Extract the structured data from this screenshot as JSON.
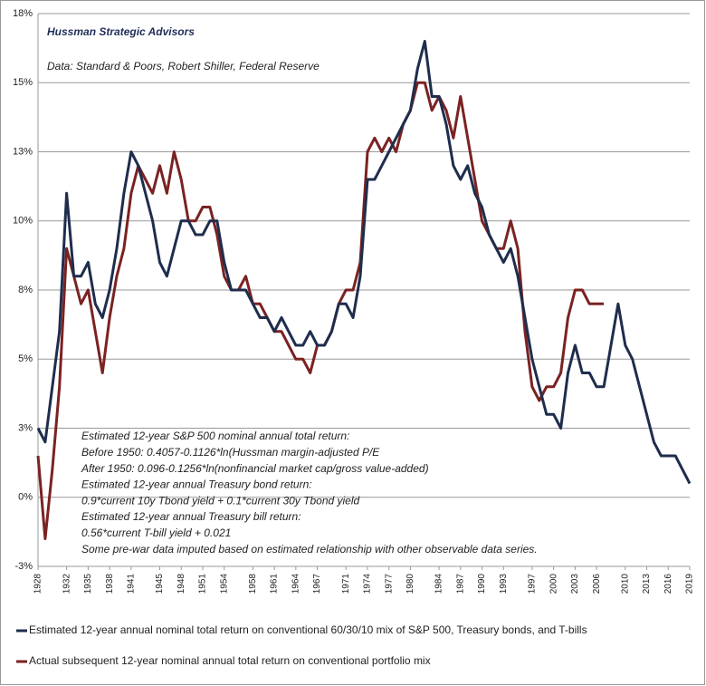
{
  "chart_data": {
    "type": "line",
    "annotations": [
      "Hussman Strategic Advisors",
      "Data: Standard & Poors, Robert Shiller, Federal Reserve"
    ],
    "notes": [
      "Estimated 12-year S&P 500  nominal annual total return:",
      "Before 1950:  0.4057-0.1126*ln(Hussman margin-adjusted P/E",
      "After 1950:  0.096-0.1256*ln(nonfinancial market cap/gross value-added)",
      "Estimated 12-year annual Treasury bond return:",
      "0.9*current 10y Tbond yield + 0.1*current 30y Tbond yield",
      "Estimated 12-year annual Treasury bill return:",
      "0.56*current  T-bill yield + 0.021",
      "Some pre-war data imputed based on estimated relationship with other observable data series."
    ],
    "x": [
      1928,
      1929,
      1930,
      1931,
      1932,
      1933,
      1934,
      1935,
      1936,
      1937,
      1938,
      1939,
      1940,
      1941,
      1942,
      1943,
      1944,
      1945,
      1946,
      1947,
      1948,
      1949,
      1950,
      1951,
      1952,
      1953,
      1954,
      1955,
      1956,
      1957,
      1958,
      1959,
      1960,
      1961,
      1962,
      1963,
      1964,
      1965,
      1966,
      1967,
      1968,
      1969,
      1970,
      1971,
      1972,
      1973,
      1974,
      1975,
      1976,
      1977,
      1978,
      1979,
      1980,
      1981,
      1982,
      1983,
      1984,
      1985,
      1986,
      1987,
      1988,
      1989,
      1990,
      1991,
      1992,
      1993,
      1994,
      1995,
      1996,
      1997,
      1998,
      1999,
      2000,
      2001,
      2002,
      2003,
      2004,
      2005,
      2006,
      2007,
      2008,
      2009,
      2010,
      2011,
      2012,
      2013,
      2014,
      2015,
      2016,
      2017,
      2018,
      2019
    ],
    "series": [
      {
        "name": "Estimated 12-year annual nominal total return on conventional 60/30/10 mix of S&P 500, Treasury bonds, and T-bills",
        "color": "#1f2d4d",
        "values": [
          2.5,
          2,
          4,
          6,
          11,
          8,
          8,
          8.5,
          7,
          6.5,
          7.5,
          9,
          11,
          12.5,
          12,
          11,
          10,
          8.5,
          8,
          9,
          10,
          10,
          9.5,
          9.5,
          10,
          10,
          8.5,
          7.5,
          7.5,
          7.5,
          7,
          6.5,
          6.5,
          6,
          6.5,
          6,
          5.5,
          5.5,
          6,
          5.5,
          5.5,
          6,
          7,
          7,
          6.5,
          8,
          11.5,
          11.5,
          12,
          12.5,
          13,
          13.5,
          14,
          15.5,
          16.5,
          14.5,
          14.5,
          13.5,
          12,
          11.5,
          12,
          11,
          10.5,
          9.5,
          9,
          8.5,
          9,
          8,
          6.5,
          5,
          4,
          3,
          3,
          2.5,
          4.5,
          5.5,
          4.5,
          4.5,
          4,
          4,
          5.5,
          7,
          5.5,
          5,
          4,
          3,
          2,
          1.5,
          1.5,
          1.5,
          1,
          0.5
        ]
      },
      {
        "name": "Actual subsequent 12-year nominal annual total return on conventional portfolio mix",
        "color": "#7b2222",
        "values": [
          1.5,
          -1.5,
          1,
          4,
          9,
          8,
          7,
          7.5,
          6,
          4.5,
          6.5,
          8,
          9,
          11,
          12,
          11.5,
          11,
          12,
          11,
          12.5,
          11.5,
          10,
          10,
          10.5,
          10.5,
          9.5,
          8,
          7.5,
          7.5,
          8,
          7,
          7,
          6.5,
          6,
          6,
          5.5,
          5,
          5,
          4.5,
          5.5,
          5.5,
          6,
          7,
          7.5,
          7.5,
          8.5,
          12.5,
          13,
          12.5,
          13,
          12.5,
          13.5,
          14,
          15,
          15,
          14,
          14.5,
          14,
          13,
          14.5,
          13,
          11.5,
          10,
          9.5,
          9,
          9,
          10,
          9,
          6,
          4,
          3.5,
          4,
          4,
          4.5,
          6.5,
          7.5,
          7.5,
          7,
          7,
          7,
          null,
          null,
          null,
          null,
          null,
          null,
          null,
          null,
          null,
          null,
          null,
          null
        ]
      }
    ],
    "xlim": [
      1928,
      2019
    ],
    "xticks": [
      1928,
      1932,
      1935,
      1938,
      1941,
      1945,
      1948,
      1951,
      1954,
      1958,
      1961,
      1964,
      1967,
      1971,
      1974,
      1977,
      1980,
      1984,
      1987,
      1990,
      1993,
      1997,
      2000,
      2003,
      2006,
      2010,
      2013,
      2016,
      2019
    ],
    "ylim": [
      -2.5,
      17.5
    ],
    "yticks": [
      {
        "value": -2.5,
        "label": "-3%"
      },
      {
        "value": 0,
        "label": "0%"
      },
      {
        "value": 2.5,
        "label": "3%"
      },
      {
        "value": 5,
        "label": "5%"
      },
      {
        "value": 7.5,
        "label": "8%"
      },
      {
        "value": 10,
        "label": "10%"
      },
      {
        "value": 12.5,
        "label": "13%"
      },
      {
        "value": 15,
        "label": "15%"
      },
      {
        "value": 17.5,
        "label": "18%"
      }
    ],
    "grid": true
  }
}
